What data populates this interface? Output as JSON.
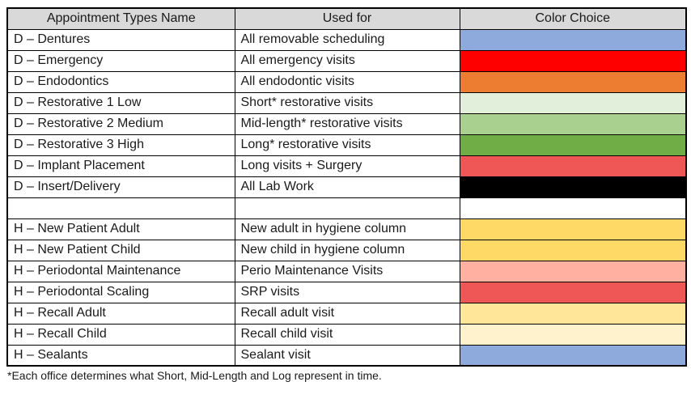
{
  "table": {
    "header": {
      "background": "#D9D9D9",
      "columns": [
        "Appointment Types Name",
        "Used for",
        "Color Choice"
      ]
    },
    "rows": [
      {
        "name": "D – Dentures",
        "used_for": "All removable scheduling",
        "color": "#8EA9DB",
        "color_label": "blue"
      },
      {
        "name": "D – Emergency",
        "used_for": "All emergency visits",
        "color": "#FF0000",
        "color_label": "red"
      },
      {
        "name": "D – Endodontics",
        "used_for": "All endodontic visits",
        "color": "#ED7D31",
        "color_label": "orange"
      },
      {
        "name": "D – Restorative 1 Low",
        "used_for": "Short* restorative visits",
        "color": "#E2EFDA",
        "color_label": "very-light-green"
      },
      {
        "name": "D – Restorative 2 Medium",
        "used_for": "Mid-length* restorative visits",
        "color": "#A9D08E",
        "color_label": "light-green"
      },
      {
        "name": "D – Restorative 3 High",
        "used_for": "Long* restorative visits",
        "color": "#70AD47",
        "color_label": "green"
      },
      {
        "name": "D – Implant Placement",
        "used_for": "Long visits + Surgery",
        "color": "#EF5656",
        "color_label": "coral-red"
      },
      {
        "name": "D – Insert/Delivery",
        "used_for": "All Lab Work",
        "color": "#000000",
        "color_label": "black"
      },
      {
        "name": "",
        "used_for": "",
        "color": "#FFFFFF",
        "color_label": "white"
      },
      {
        "name": "H – New Patient Adult",
        "used_for": "New adult in hygiene column",
        "color": "#FFD966",
        "color_label": "gold"
      },
      {
        "name": "H – New Patient Child",
        "used_for": "New child in hygiene column",
        "color": "#FFD966",
        "color_label": "gold"
      },
      {
        "name": "H – Periodontal Maintenance",
        "used_for": "Perio Maintenance Visits",
        "color": "#FFB0A1",
        "color_label": "salmon-pink"
      },
      {
        "name": "H – Periodontal Scaling",
        "used_for": "SRP visits",
        "color": "#EF5656",
        "color_label": "coral-red"
      },
      {
        "name": "H – Recall Adult",
        "used_for": "Recall adult visit",
        "color": "#FFE699",
        "color_label": "light-gold"
      },
      {
        "name": "H – Recall Child",
        "used_for": "Recall child visit",
        "color": "#FFF2CC",
        "color_label": "pale-gold"
      },
      {
        "name": "H – Sealants",
        "used_for": "Sealant visit",
        "color": "#8EA9DB",
        "color_label": "blue"
      }
    ]
  },
  "footnote": "*Each office determines what Short, Mid-Length and Log represent in time."
}
